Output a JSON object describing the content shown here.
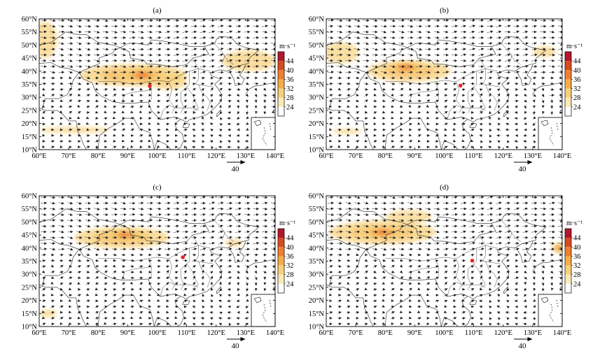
{
  "panels": [
    {
      "label": "(a)",
      "location_dot": {
        "lon": 97.5,
        "lat": 34.3
      },
      "jets": [
        {
          "lon": 92,
          "lat": 38.5,
          "rlon": 18,
          "rlat": 4.2,
          "level": 0.6
        },
        {
          "lon": 95,
          "lat": 38.5,
          "rlon": 8,
          "rlat": 2.8,
          "level": 0.8
        },
        {
          "lon": 104,
          "lat": 36,
          "rlon": 6,
          "rlat": 3,
          "level": 0.45
        },
        {
          "lon": 62,
          "lat": 52,
          "rlon": 4,
          "rlat": 7,
          "level": 0.4
        },
        {
          "lon": 131,
          "lat": 44,
          "rlon": 9,
          "rlat": 4,
          "level": 0.45
        },
        {
          "lon": 72,
          "lat": 17.5,
          "rlon": 12,
          "rlat": 1.2,
          "level": 0.3
        }
      ]
    },
    {
      "label": "(b)",
      "location_dot": {
        "lon": 105.5,
        "lat": 34.5
      },
      "jets": [
        {
          "lon": 88,
          "lat": 40,
          "rlon": 14,
          "rlat": 4,
          "level": 0.55
        },
        {
          "lon": 87,
          "lat": 41.5,
          "rlon": 7,
          "rlat": 2.5,
          "level": 0.75
        },
        {
          "lon": 65,
          "lat": 47,
          "rlon": 6,
          "rlat": 4,
          "level": 0.35
        },
        {
          "lon": 134,
          "lat": 47.5,
          "rlon": 4,
          "rlat": 2,
          "level": 0.35
        },
        {
          "lon": 67,
          "lat": 17,
          "rlon": 5,
          "rlat": 1,
          "level": 0.3
        }
      ]
    },
    {
      "label": "(c)",
      "location_dot": {
        "lon": 108.7,
        "lat": 36.5
      },
      "jets": [
        {
          "lon": 88,
          "lat": 44,
          "rlon": 16,
          "rlat": 4,
          "level": 0.5
        },
        {
          "lon": 89,
          "lat": 45,
          "rlon": 7,
          "rlat": 2.4,
          "level": 0.7
        },
        {
          "lon": 126,
          "lat": 42,
          "rlon": 3,
          "rlat": 1.5,
          "level": 0.3
        },
        {
          "lon": 63,
          "lat": 15,
          "rlon": 3,
          "rlat": 1.5,
          "level": 0.3
        }
      ]
    },
    {
      "label": "(d)",
      "location_dot": {
        "lon": 109.5,
        "lat": 35.2
      },
      "jets": [
        {
          "lon": 79,
          "lat": 46,
          "rlon": 18,
          "rlat": 4.5,
          "level": 0.5
        },
        {
          "lon": 79,
          "lat": 46,
          "rlon": 8,
          "rlat": 2.5,
          "level": 0.8
        },
        {
          "lon": 88,
          "lat": 52,
          "rlon": 8,
          "rlat": 2.5,
          "level": 0.3
        },
        {
          "lon": 139,
          "lat": 40,
          "rlon": 2.5,
          "rlat": 2,
          "level": 0.8
        }
      ]
    }
  ],
  "axes": {
    "x_ticks": [
      "60°E",
      "70°E",
      "80°E",
      "90°E",
      "100°E",
      "110°E",
      "120°E",
      "130°E",
      "140°E"
    ],
    "y_ticks": [
      "10°N",
      "15°N",
      "20°N",
      "25°N",
      "30°N",
      "35°N",
      "40°N",
      "45°N",
      "50°N",
      "55°N",
      "60°N"
    ],
    "lon_range": [
      60,
      140
    ],
    "lat_range": [
      10,
      60
    ]
  },
  "colorbar": {
    "unit": "m·s⁻¹",
    "ticks": [
      "44",
      "40",
      "36",
      "32",
      "28",
      "24"
    ],
    "colors": [
      "#b2182b",
      "#d94a1e",
      "#ef7f2e",
      "#f6ad48",
      "#f8d07a",
      "#fbe9b5",
      "#ffffff"
    ]
  },
  "reference_vector": {
    "label": "40"
  },
  "colors": {
    "jet_core": "#e8652a",
    "jet_edge": "#f8d07a",
    "wind_vector": "#222222",
    "location_dot": "#e8262a"
  }
}
